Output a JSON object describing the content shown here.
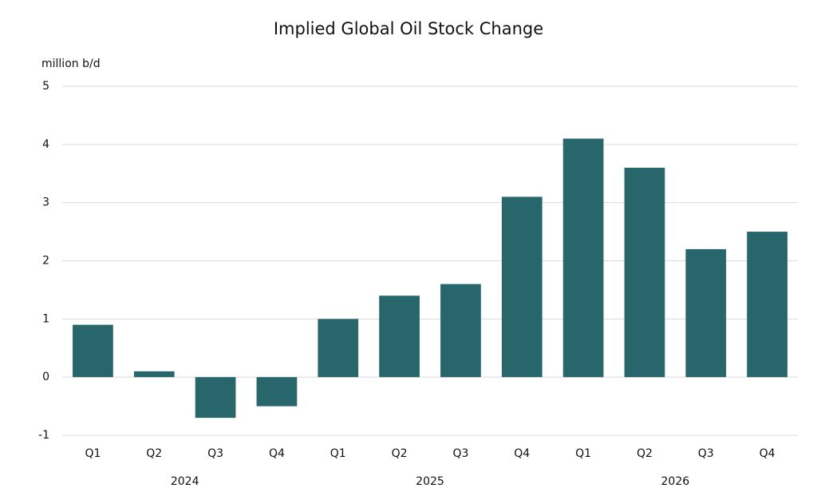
{
  "chart_data": {
    "type": "bar",
    "title": "Implied Global Oil Stock Change",
    "y_label": "million b/d",
    "categories": [
      "Q1",
      "Q2",
      "Q3",
      "Q4",
      "Q1",
      "Q2",
      "Q3",
      "Q4",
      "Q1",
      "Q2",
      "Q3",
      "Q4"
    ],
    "groups": [
      "2024",
      "2025",
      "2026"
    ],
    "values": [
      0.9,
      0.1,
      -0.7,
      -0.5,
      1.0,
      1.4,
      1.6,
      3.1,
      4.1,
      3.6,
      2.2,
      2.5
    ],
    "color": "#27666b",
    "ylim": [
      -1,
      5
    ],
    "yticks": [
      -1,
      0,
      1,
      2,
      3,
      4,
      5
    ],
    "grid": true
  }
}
